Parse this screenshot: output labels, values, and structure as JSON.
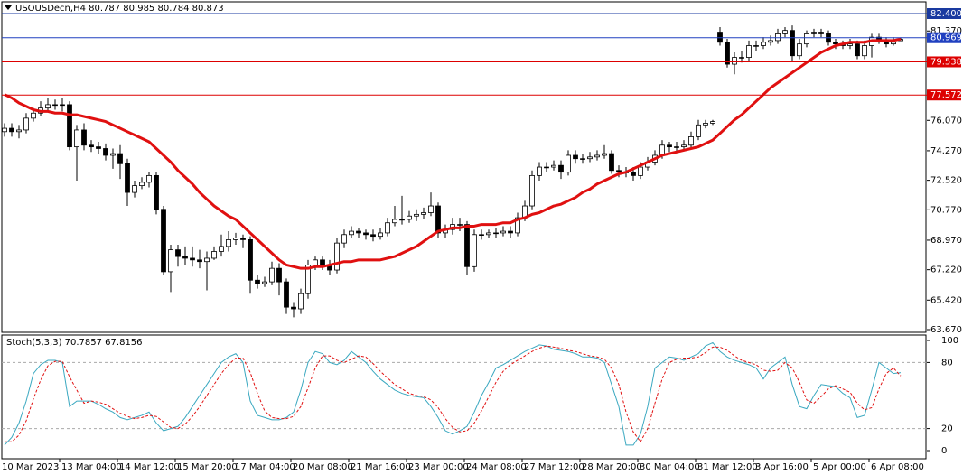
{
  "chart_data": [
    {
      "type": "candlestick",
      "title": "USOUSDecn,H4  80.787 80.985 80.784 80.873",
      "x_labels": [
        "10 Mar 2023",
        "13 Mar 04:00",
        "14 Mar 12:00",
        "15 Mar 20:00",
        "17 Mar 04:00",
        "20 Mar 08:00",
        "21 Mar 16:00",
        "23 Mar 00:00",
        "24 Mar 08:00",
        "27 Mar 12:00",
        "28 Mar 20:00",
        "30 Mar 04:00",
        "31 Mar 12:00",
        "3 Apr 16:00",
        "5 Apr 00:00",
        "6 Apr 08:00"
      ],
      "open": [
        75.4,
        75.6,
        75.4,
        75.5,
        76.2,
        76.5,
        76.8,
        77.0,
        77.0,
        77.0,
        74.5,
        75.5,
        74.6,
        74.5,
        74.4,
        74.0,
        74.1,
        73.5,
        71.8,
        72.2,
        72.4,
        72.8,
        70.8,
        67.1,
        68.4,
        68.0,
        67.9,
        67.8,
        67.7,
        67.9,
        68.3,
        68.6,
        69.0,
        69.1,
        69.0,
        66.6,
        66.4,
        66.5,
        67.3,
        66.5,
        65.0,
        64.9,
        65.8,
        67.5,
        67.8,
        67.5,
        67.2,
        68.8,
        69.3,
        69.5,
        69.4,
        69.3,
        69.2,
        69.4,
        70.0,
        70.2,
        70.2,
        70.4,
        70.5,
        70.6,
        71.0,
        69.4,
        69.6,
        69.9,
        69.9,
        67.4,
        69.3,
        69.3,
        69.4,
        69.4,
        69.5,
        69.4,
        70.3,
        71.0,
        72.8,
        73.3,
        73.3,
        73.4,
        73.0,
        74.0,
        73.8,
        73.8,
        73.9,
        74.0,
        74.1,
        73.1,
        73.0,
        73.0,
        72.8,
        73.3,
        73.6,
        74.0,
        74.6,
        74.5,
        74.5,
        74.6,
        75.1,
        75.8,
        75.9,
        81.3,
        80.7,
        79.4,
        79.8,
        79.8,
        80.5,
        80.5,
        80.7,
        80.8,
        81.2,
        81.4,
        79.9,
        80.6,
        81.2,
        81.3,
        81.2,
        80.7,
        80.6,
        80.5,
        80.6,
        79.9,
        80.5,
        81.0,
        80.8,
        80.6,
        80.79
      ],
      "high": [
        75.9,
        75.9,
        75.8,
        76.5,
        76.8,
        77.2,
        77.4,
        77.3,
        77.4,
        77.2,
        75.8,
        75.9,
        74.9,
        74.8,
        74.7,
        74.4,
        74.6,
        73.8,
        72.5,
        72.7,
        73.0,
        73.0,
        71.0,
        68.7,
        68.7,
        68.6,
        68.6,
        68.4,
        68.3,
        68.6,
        69.3,
        69.5,
        69.4,
        69.3,
        69.2,
        66.9,
        66.8,
        67.7,
        67.6,
        66.7,
        65.3,
        66.1,
        67.8,
        68.0,
        68.0,
        67.8,
        69.1,
        69.6,
        69.8,
        69.7,
        69.6,
        69.6,
        69.7,
        70.3,
        71.0,
        71.6,
        70.7,
        70.8,
        70.9,
        71.8,
        71.2,
        69.9,
        70.3,
        70.3,
        70.1,
        69.6,
        69.6,
        69.6,
        69.7,
        69.8,
        69.8,
        70.6,
        71.3,
        73.1,
        73.6,
        73.6,
        73.7,
        73.7,
        74.3,
        74.3,
        74.1,
        74.2,
        74.3,
        74.6,
        74.3,
        73.4,
        73.3,
        73.3,
        73.6,
        73.9,
        74.3,
        74.9,
        74.8,
        74.8,
        74.9,
        75.4,
        76.1,
        76.1,
        76.1,
        81.6,
        80.9,
        80.1,
        80.2,
        80.8,
        80.8,
        81.0,
        81.1,
        81.5,
        81.6,
        81.7,
        80.9,
        81.4,
        81.5,
        81.5,
        81.4,
        80.9,
        80.8,
        80.9,
        80.8,
        80.8,
        81.2,
        81.2,
        81.0,
        81.0,
        80.99
      ],
      "low": [
        75.1,
        75.1,
        75.0,
        75.3,
        76.0,
        76.3,
        76.6,
        76.7,
        76.6,
        74.3,
        72.5,
        74.3,
        74.2,
        74.1,
        73.7,
        73.2,
        72.6,
        71.0,
        71.5,
        72.0,
        72.1,
        70.5,
        66.9,
        65.9,
        67.4,
        67.5,
        67.4,
        67.3,
        66.0,
        67.8,
        68.0,
        68.3,
        68.7,
        68.5,
        65.8,
        66.1,
        66.2,
        66.3,
        65.7,
        64.6,
        64.4,
        64.6,
        65.5,
        67.2,
        67.2,
        66.9,
        67.0,
        68.5,
        69.1,
        69.1,
        69.0,
        68.9,
        69.0,
        69.2,
        69.8,
        69.9,
        70.0,
        70.1,
        70.2,
        70.4,
        69.1,
        69.1,
        69.3,
        69.5,
        66.9,
        67.1,
        69.0,
        69.1,
        69.1,
        69.2,
        69.1,
        69.2,
        70.1,
        70.8,
        72.5,
        73.0,
        73.1,
        72.6,
        72.8,
        73.5,
        73.5,
        73.6,
        73.7,
        73.8,
        72.9,
        72.7,
        72.7,
        72.5,
        72.6,
        73.1,
        73.4,
        73.8,
        74.2,
        74.2,
        74.3,
        74.4,
        74.9,
        75.6,
        75.8,
        80.5,
        79.2,
        78.8,
        79.5,
        79.6,
        80.2,
        80.3,
        80.5,
        80.6,
        81.0,
        79.6,
        79.7,
        80.4,
        81.0,
        81.0,
        80.5,
        80.3,
        80.3,
        80.3,
        79.7,
        79.7,
        79.8,
        80.6,
        80.4,
        80.5,
        80.78
      ],
      "close": [
        75.6,
        75.4,
        75.5,
        76.2,
        76.5,
        76.8,
        77.0,
        77.0,
        77.0,
        74.5,
        75.5,
        74.6,
        74.5,
        74.4,
        74.0,
        74.1,
        73.5,
        71.8,
        72.2,
        72.4,
        72.8,
        70.8,
        67.1,
        68.4,
        68.0,
        67.9,
        67.8,
        67.7,
        67.9,
        68.3,
        68.6,
        69.0,
        69.1,
        69.0,
        66.6,
        66.4,
        66.5,
        67.3,
        66.5,
        65.0,
        64.9,
        65.8,
        67.5,
        67.8,
        67.5,
        67.2,
        68.8,
        69.3,
        69.5,
        69.4,
        69.3,
        69.2,
        69.4,
        70.0,
        70.2,
        70.2,
        70.4,
        70.5,
        70.6,
        71.0,
        69.4,
        69.6,
        69.9,
        69.9,
        67.4,
        69.3,
        69.3,
        69.4,
        69.4,
        69.5,
        69.4,
        70.3,
        71.0,
        72.8,
        73.3,
        73.3,
        73.4,
        73.0,
        74.0,
        73.8,
        73.8,
        73.9,
        74.0,
        74.1,
        73.1,
        73.0,
        73.0,
        72.8,
        73.3,
        73.6,
        74.0,
        74.6,
        74.5,
        74.5,
        74.6,
        75.1,
        75.8,
        75.9,
        76.0,
        80.7,
        79.4,
        79.8,
        79.8,
        80.5,
        80.5,
        80.7,
        80.8,
        81.2,
        81.4,
        79.9,
        80.6,
        81.2,
        81.3,
        81.2,
        80.7,
        80.6,
        80.5,
        80.6,
        79.9,
        80.5,
        81.0,
        80.8,
        80.6,
        80.7,
        80.87
      ],
      "up_color": "#ffffff",
      "down_color": "#000000",
      "ma": {
        "color": "#e01010",
        "values": [
          77.6,
          77.4,
          77.1,
          76.9,
          76.7,
          76.6,
          76.6,
          76.5,
          76.5,
          76.4,
          76.4,
          76.3,
          76.2,
          76.1,
          76.0,
          75.8,
          75.6,
          75.4,
          75.2,
          75.0,
          74.8,
          74.4,
          74.0,
          73.6,
          73.1,
          72.7,
          72.3,
          71.8,
          71.4,
          71.0,
          70.7,
          70.4,
          70.2,
          69.8,
          69.4,
          69.0,
          68.6,
          68.2,
          67.8,
          67.5,
          67.4,
          67.3,
          67.3,
          67.4,
          67.4,
          67.5,
          67.6,
          67.7,
          67.7,
          67.8,
          67.8,
          67.8,
          67.8,
          67.9,
          68.0,
          68.2,
          68.4,
          68.6,
          68.9,
          69.2,
          69.5,
          69.6,
          69.7,
          69.7,
          69.8,
          69.8,
          69.9,
          69.9,
          69.9,
          70.0,
          70.0,
          70.2,
          70.3,
          70.5,
          70.6,
          70.8,
          71.0,
          71.1,
          71.3,
          71.5,
          71.8,
          72.0,
          72.3,
          72.5,
          72.7,
          72.9,
          73.0,
          73.2,
          73.4,
          73.6,
          73.8,
          74.0,
          74.1,
          74.2,
          74.3,
          74.4,
          74.5,
          74.7,
          74.9,
          75.3,
          75.7,
          76.1,
          76.4,
          76.8,
          77.2,
          77.6,
          78.0,
          78.3,
          78.6,
          78.9,
          79.2,
          79.5,
          79.8,
          80.1,
          80.3,
          80.5,
          80.6,
          80.7,
          80.7,
          80.7,
          80.8,
          80.8,
          80.8,
          80.8,
          80.9
        ]
      },
      "ylim": [
        63.67,
        82.4
      ],
      "yticks": [
        {
          "value": 81.37,
          "label": "81.370"
        },
        {
          "value": 76.07,
          "label": "76.070"
        },
        {
          "value": 74.27,
          "label": "74.270"
        },
        {
          "value": 72.52,
          "label": "72.520"
        },
        {
          "value": 70.77,
          "label": "70.770"
        },
        {
          "value": 68.97,
          "label": "68.970"
        },
        {
          "value": 67.22,
          "label": "67.220"
        },
        {
          "value": 65.42,
          "label": "65.420"
        },
        {
          "value": 63.67,
          "label": "63.670"
        }
      ],
      "levels": [
        {
          "value": 82.4,
          "label": "82.400",
          "color": "#1a3aa0"
        },
        {
          "value": 80.969,
          "label": "80.969",
          "color": "#2040c0"
        },
        {
          "value": 79.538,
          "label": "79.538",
          "color": "#dd0000"
        },
        {
          "value": 77.572,
          "label": "77.572",
          "color": "#dd0000"
        }
      ]
    },
    {
      "type": "line",
      "title": "Stoch(5,3,3) 70.7857 67.8156",
      "ylim": [
        0,
        100
      ],
      "yticks": [
        100,
        80,
        20,
        0
      ],
      "levels": [
        80,
        20
      ],
      "series": [
        {
          "color": "#3aa8c0",
          "dash": false,
          "values": [
            5,
            12,
            25,
            45,
            70,
            78,
            82,
            82,
            80,
            40,
            45,
            45,
            45,
            42,
            38,
            35,
            30,
            28,
            30,
            32,
            35,
            25,
            18,
            20,
            22,
            30,
            40,
            50,
            60,
            70,
            80,
            85,
            88,
            80,
            45,
            32,
            30,
            28,
            28,
            30,
            35,
            55,
            80,
            90,
            88,
            80,
            78,
            82,
            90,
            85,
            80,
            72,
            65,
            60,
            55,
            52,
            50,
            49,
            48,
            40,
            30,
            18,
            15,
            18,
            22,
            35,
            50,
            62,
            75,
            78,
            82,
            86,
            90,
            93,
            96,
            95,
            92,
            91,
            90,
            88,
            85,
            85,
            84,
            80,
            60,
            40,
            5,
            5,
            15,
            40,
            75,
            80,
            85,
            84,
            82,
            85,
            88,
            95,
            98,
            90,
            85,
            82,
            80,
            78,
            75,
            65,
            75,
            80,
            85,
            60,
            40,
            38,
            50,
            60,
            59,
            58,
            52,
            48,
            30,
            32,
            55,
            80,
            75,
            70,
            70.79
          ]
        },
        {
          "color": "#e01010",
          "dash": true,
          "values": [
            8,
            8,
            14,
            27,
            47,
            64,
            77,
            81,
            81,
            67,
            55,
            43,
            45,
            44,
            42,
            38,
            34,
            31,
            29,
            30,
            32,
            31,
            26,
            21,
            20,
            24,
            31,
            40,
            50,
            60,
            70,
            78,
            84,
            84,
            71,
            52,
            36,
            30,
            29,
            29,
            31,
            40,
            57,
            75,
            86,
            86,
            82,
            80,
            83,
            86,
            85,
            79,
            72,
            66,
            60,
            56,
            52,
            50,
            49,
            46,
            39,
            29,
            21,
            17,
            18,
            25,
            36,
            49,
            62,
            72,
            78,
            82,
            86,
            90,
            93,
            95,
            94,
            93,
            91,
            90,
            88,
            86,
            85,
            83,
            75,
            60,
            35,
            17,
            8,
            20,
            43,
            65,
            80,
            83,
            84,
            84,
            85,
            89,
            94,
            94,
            91,
            86,
            82,
            80,
            78,
            73,
            72,
            73,
            80,
            75,
            62,
            46,
            43,
            49,
            56,
            59,
            56,
            53,
            43,
            37,
            39,
            56,
            70,
            75,
            67.8156
          ]
        }
      ]
    }
  ]
}
